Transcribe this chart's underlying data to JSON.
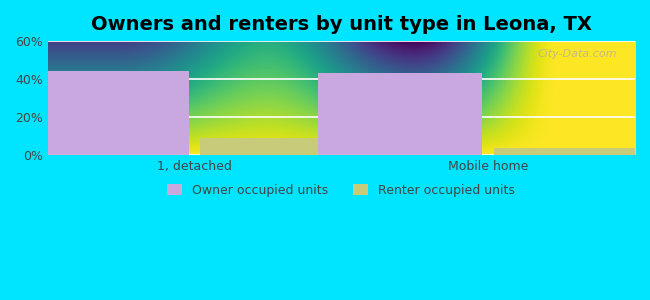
{
  "title": "Owners and renters by unit type in Leona, TX",
  "categories": [
    "1, detached",
    "Mobile home"
  ],
  "owner_values": [
    44.5,
    43.0
  ],
  "renter_values": [
    9.0,
    4.0
  ],
  "owner_color": "#c9a8e0",
  "renter_color": "#c8cc7a",
  "ylim": [
    0,
    60
  ],
  "yticks": [
    0,
    20,
    40,
    60
  ],
  "ytick_labels": [
    "0%",
    "20%",
    "40%",
    "60%"
  ],
  "background_color": "#00e5ff",
  "plot_bg_top": "#dff0d8",
  "plot_bg_bottom": "#ffffff",
  "bar_width": 0.28,
  "legend_labels": [
    "Owner occupied units",
    "Renter occupied units"
  ],
  "watermark": "City-Data.com",
  "title_fontsize": 14
}
